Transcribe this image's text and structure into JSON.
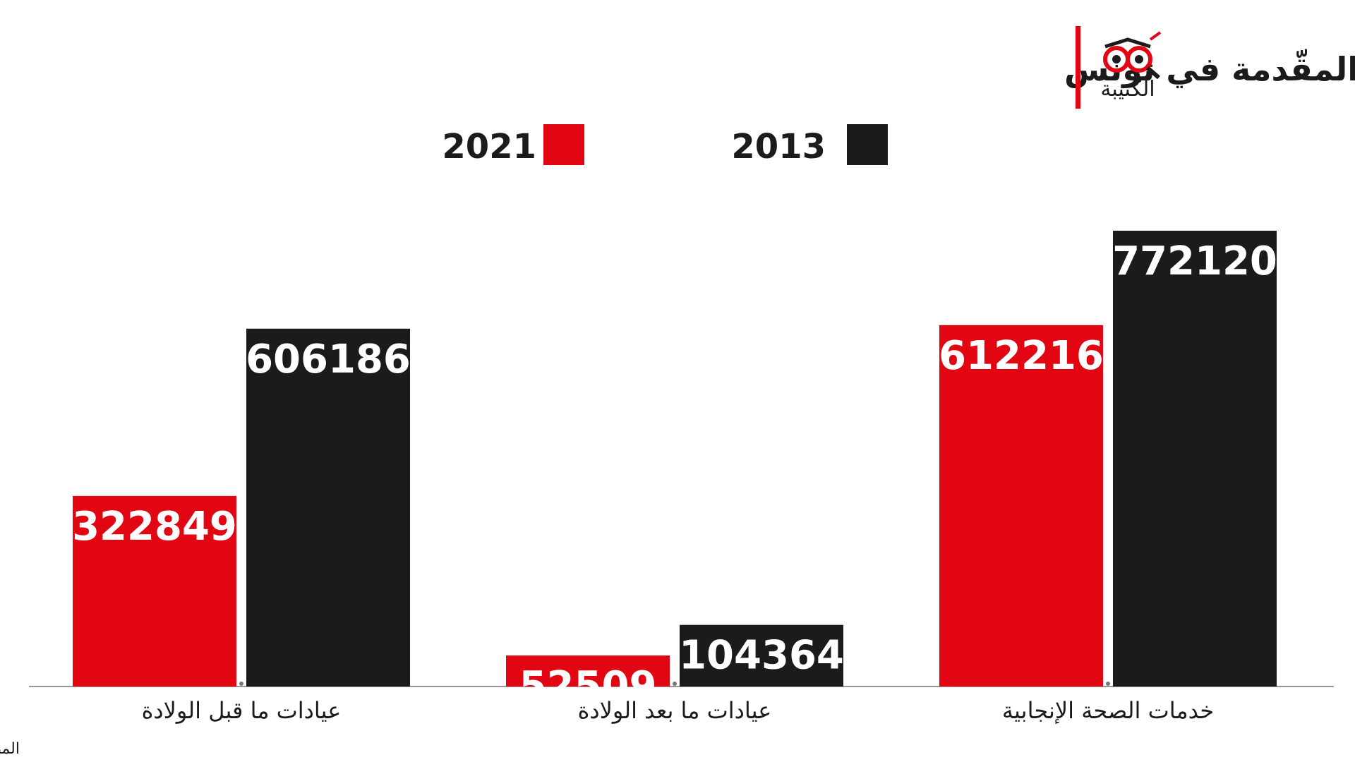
{
  "chart_data": {
    "type": "bar",
    "title": "تطوّر عدد خدمات الصحة الجنسية والإنجابيّة المقّدمة في تونس",
    "logo_text": "الكتيبة",
    "source": "المصدر: المعهد الوطني للإحصاء",
    "categories": [
      "عيادات ما قبل الولادة",
      "عيادات ما بعد الولادة",
      "خدمات الصحة الإنجابية"
    ],
    "series": [
      {
        "name": "2021",
        "color": "#e20613",
        "values": [
          322849,
          52509,
          612216
        ]
      },
      {
        "name": "2013",
        "color": "#1b1b1b",
        "values": [
          606186,
          104364,
          772120
        ]
      }
    ]
  }
}
